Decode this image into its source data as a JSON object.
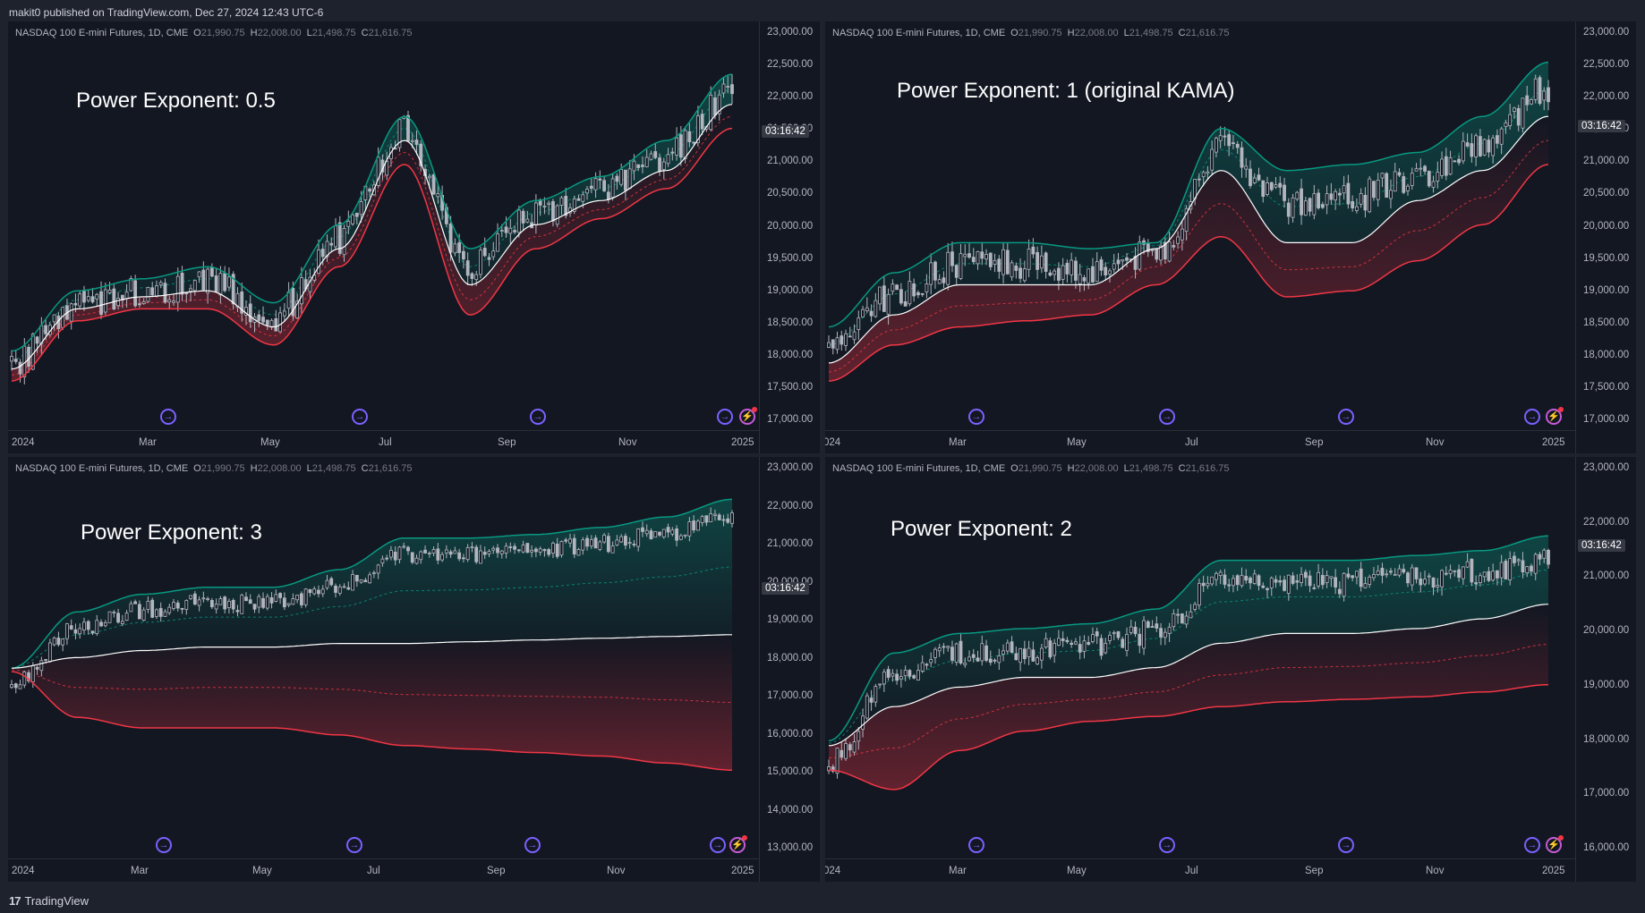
{
  "header": {
    "publish_line": "makit0 published on TradingView.com, Dec 27, 2024 12:43 UTC-6"
  },
  "footer": {
    "brand_mark": "17",
    "brand_name": "TradingView"
  },
  "legend": {
    "symbol": "NASDAQ 100 E-mini Futures, 1D, CME",
    "o_label": "O",
    "o_value": "21,990.75",
    "h_label": "H",
    "h_value": "22,008.00",
    "l_label": "L",
    "l_value": "21,498.75",
    "c_label": "C",
    "c_value": "21,616.75"
  },
  "countdown": "03:16:42",
  "colors": {
    "background": "#131722",
    "candle": "#b2b5be",
    "upper_band": "#089981",
    "lower_band": "#f23645",
    "kama_line": "#ffffff",
    "event_icon": "#7b61ff"
  },
  "time_labels": [
    "2024",
    "Mar",
    "May",
    "Jul",
    "Sep",
    "Nov",
    "2025"
  ],
  "panels": [
    {
      "id": "tl",
      "title": "Power Exponent: 0.5",
      "price_ticks": [
        "23,000.00",
        "22,500.00",
        "22,000.00",
        "21,500.00",
        "21,000.00",
        "20,500.00",
        "20,000.00",
        "19,500.00",
        "19,000.00",
        "18,500.00",
        "18,000.00",
        "17,500.00",
        "17,000.00"
      ],
      "time_labels": [
        "2024",
        "Mar",
        "May",
        "Jul",
        "Sep",
        "Nov",
        "2025"
      ],
      "events": [
        "arrow",
        "arrow",
        "arrow",
        "arrow",
        "flash"
      ]
    },
    {
      "id": "tr",
      "title": "Power Exponent: 1 (original KAMA)",
      "price_ticks": [
        "23,000.00",
        "22,500.00",
        "22,000.00",
        "21,500.00",
        "21,000.00",
        "20,500.00",
        "20,000.00",
        "19,500.00",
        "19,000.00",
        "18,500.00",
        "18,000.00",
        "17,500.00",
        "17,000.00"
      ],
      "time_labels": [
        "024",
        "Mar",
        "May",
        "Jul",
        "Sep",
        "Nov",
        "2025"
      ],
      "events": [
        "arrow",
        "arrow",
        "arrow",
        "arrow",
        "flash"
      ]
    },
    {
      "id": "bl",
      "title": "Power Exponent: 3",
      "price_ticks": [
        "23,000.00",
        "22,000.00",
        "21,000.00",
        "20,000.00",
        "19,000.00",
        "18,000.00",
        "17,000.00",
        "16,000.00",
        "15,000.00",
        "14,000.00",
        "13,000.00"
      ],
      "time_labels": [
        "2024",
        "Mar",
        "May",
        "Jul",
        "Sep",
        "Nov",
        "2025"
      ],
      "events": [
        "arrow",
        "arrow",
        "arrow",
        "arrow",
        "flash"
      ]
    },
    {
      "id": "br",
      "title": "Power Exponent: 2",
      "price_ticks": [
        "23,000.00",
        "22,000.00",
        "21,000.00",
        "20,000.00",
        "19,000.00",
        "18,000.00",
        "17,000.00",
        "16,000.00"
      ],
      "time_labels": [
        "024",
        "Mar",
        "May",
        "Jul",
        "Sep",
        "Nov",
        "2025"
      ],
      "events": [
        "arrow",
        "arrow",
        "arrow",
        "arrow",
        "flash"
      ]
    }
  ],
  "chart_data": [
    {
      "type": "line",
      "title": "Power Exponent: 0.5",
      "x": [
        "2024-01",
        "2024-02",
        "2024-03",
        "2024-04",
        "2024-05",
        "2024-06",
        "2024-07",
        "2024-08",
        "2024-09",
        "2024-10",
        "2024-11",
        "2024-12"
      ],
      "series": [
        {
          "values": [
            17500,
            18500,
            18700,
            18800,
            18200,
            19500,
            21300,
            18900,
            19900,
            20300,
            20800,
            21900
          ]
        },
        {
          "values": [
            17800,
            18800,
            19000,
            19200,
            18600,
            19900,
            21700,
            19500,
            20300,
            20700,
            21300,
            22400
          ]
        },
        {
          "values": [
            17300,
            18300,
            18500,
            18500,
            17900,
            19200,
            20900,
            18400,
            19500,
            20000,
            20500,
            21500
          ]
        }
      ],
      "ylim": [
        16900,
        23100
      ]
    },
    {
      "type": "line",
      "title": "Power Exponent: 1 (original KAMA)",
      "x": [
        "2024-01",
        "2024-02",
        "2024-03",
        "2024-04",
        "2024-05",
        "2024-06",
        "2024-07",
        "2024-08",
        "2024-09",
        "2024-10",
        "2024-11",
        "2024-12"
      ],
      "series": [
        {
          "values": [
            17600,
            18400,
            18900,
            18900,
            18900,
            19500,
            20800,
            19600,
            19600,
            20300,
            20800,
            21700
          ]
        },
        {
          "values": [
            18200,
            19100,
            19600,
            19600,
            19500,
            19600,
            21500,
            20800,
            20900,
            21100,
            21700,
            22600
          ]
        },
        {
          "values": [
            17300,
            17900,
            18200,
            18300,
            18400,
            18900,
            19700,
            18700,
            18800,
            19300,
            19900,
            20900
          ]
        }
      ],
      "ylim": [
        16900,
        23100
      ]
    },
    {
      "type": "line",
      "title": "Power Exponent: 3",
      "x": [
        "2024-01",
        "2024-02",
        "2024-03",
        "2024-04",
        "2024-05",
        "2024-06",
        "2024-07",
        "2024-08",
        "2024-09",
        "2024-10",
        "2024-11",
        "2024-12"
      ],
      "series": [
        {
          "values": [
            17500,
            17800,
            18000,
            18100,
            18100,
            18200,
            18200,
            18250,
            18300,
            18350,
            18400,
            18450
          ]
        },
        {
          "values": [
            17500,
            19100,
            19600,
            19800,
            19800,
            20300,
            21200,
            21200,
            21300,
            21500,
            21800,
            22300
          ]
        },
        {
          "values": [
            17400,
            16100,
            15800,
            15800,
            15800,
            15600,
            15300,
            15200,
            15100,
            15000,
            14800,
            14600
          ]
        }
      ],
      "ylim": [
        12800,
        23200
      ]
    },
    {
      "type": "line",
      "title": "Power Exponent: 2",
      "x": [
        "2024-01",
        "2024-02",
        "2024-03",
        "2024-04",
        "2024-05",
        "2024-06",
        "2024-07",
        "2024-08",
        "2024-09",
        "2024-10",
        "2024-11",
        "2024-12"
      ],
      "series": [
        {
          "values": [
            17500,
            18300,
            18700,
            18900,
            18900,
            19100,
            19600,
            19800,
            19800,
            19900,
            20100,
            20400
          ]
        },
        {
          "values": [
            17600,
            19400,
            19800,
            19900,
            20000,
            20300,
            21300,
            21300,
            21300,
            21400,
            21500,
            21800
          ]
        },
        {
          "values": [
            17000,
            16600,
            17400,
            17800,
            18000,
            18100,
            18300,
            18400,
            18450,
            18500,
            18600,
            18750
          ]
        }
      ],
      "ylim": [
        15700,
        23200
      ]
    }
  ]
}
